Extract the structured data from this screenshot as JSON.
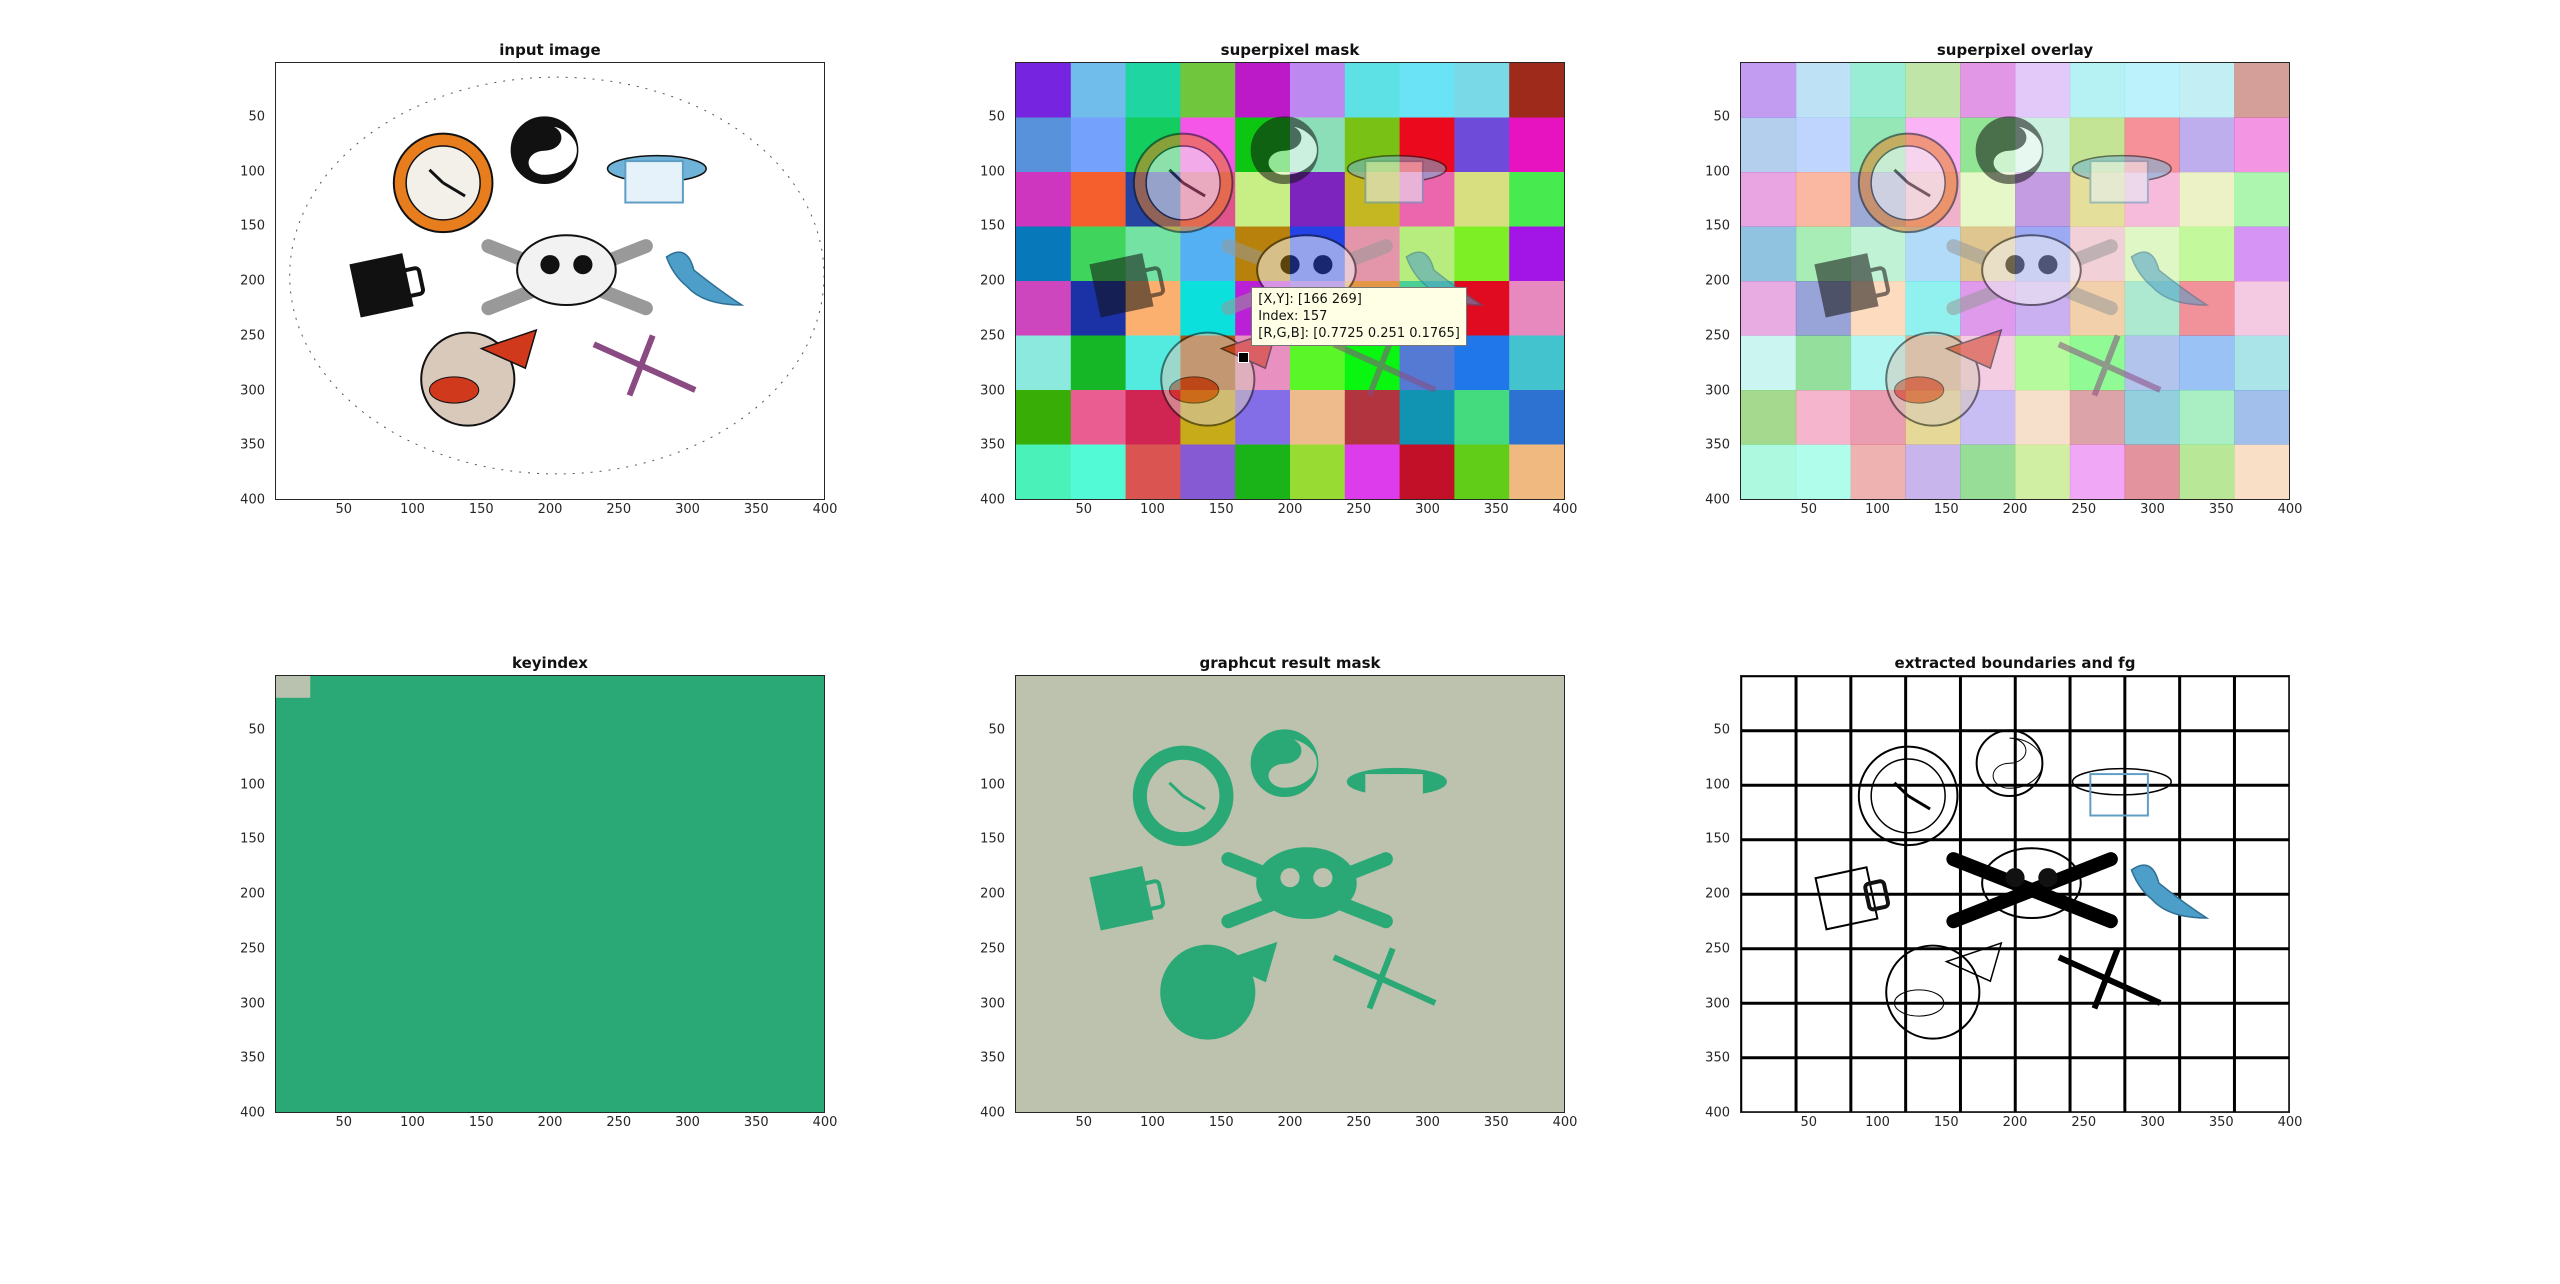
{
  "axes": {
    "x_ticks": [
      "50",
      "100",
      "150",
      "200",
      "250",
      "300",
      "350",
      "400"
    ],
    "y_ticks": [
      "50",
      "100",
      "150",
      "200",
      "250",
      "300",
      "350",
      "400"
    ],
    "range": [
      0,
      400
    ]
  },
  "panels": [
    {
      "id": "input",
      "title": "input image"
    },
    {
      "id": "mask",
      "title": "superpixel mask"
    },
    {
      "id": "overlay",
      "title": "superpixel overlay"
    },
    {
      "id": "keyindex",
      "title": "keyindex"
    },
    {
      "id": "graphcut",
      "title": "graphcut result mask"
    },
    {
      "id": "boundaries",
      "title": "extracted boundaries and fg"
    }
  ],
  "datatip": {
    "xy": "[X,Y]: [166 269]",
    "index": "Index: 157",
    "rgb": "[R,G,B]: [0.7725 0.251 0.1765]",
    "point_xy": [
      166,
      269
    ]
  },
  "colors": {
    "keyindex_green": "#2aa977",
    "keyindex_gray": "#b8c2ae",
    "graphcut_bg": "#bcc2ad",
    "graphcut_fg": "#2aa977",
    "clock_orange": "#e87d1e",
    "dolphin_blue": "#4d9ec9",
    "scissors_purple": "#8a4b82",
    "clown_red": "#d0391c"
  },
  "grid": {
    "cols": 10,
    "rows": 8
  }
}
